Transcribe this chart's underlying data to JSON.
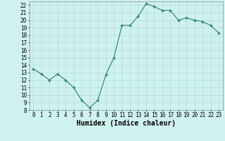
{
  "x": [
    0,
    1,
    2,
    3,
    4,
    5,
    6,
    7,
    8,
    9,
    10,
    11,
    12,
    13,
    14,
    15,
    16,
    17,
    18,
    19,
    20,
    21,
    22,
    23
  ],
  "y": [
    13.5,
    12.8,
    12.0,
    12.8,
    12.0,
    11.0,
    9.3,
    8.3,
    9.3,
    12.7,
    15.0,
    19.3,
    19.3,
    20.5,
    22.2,
    21.8,
    21.3,
    21.3,
    20.0,
    20.3,
    20.0,
    19.8,
    19.3,
    18.3
  ],
  "line_color": "#2e7d6e",
  "marker": "+",
  "marker_size": 3,
  "marker_linewidth": 1.0,
  "bg_color": "#cff2ef",
  "grid_color": "#a8d8d4",
  "xlabel": "Humidex (Indice chaleur)",
  "xlabel_fontsize": 7,
  "tick_fontsize": 5.5,
  "ylim": [
    8,
    22.5
  ],
  "xlim": [
    -0.5,
    23.5
  ],
  "yticks": [
    8,
    9,
    10,
    11,
    12,
    13,
    14,
    15,
    16,
    17,
    18,
    19,
    20,
    21,
    22
  ],
  "xticks": [
    0,
    1,
    2,
    3,
    4,
    5,
    6,
    7,
    8,
    9,
    10,
    11,
    12,
    13,
    14,
    15,
    16,
    17,
    18,
    19,
    20,
    21,
    22,
    23
  ]
}
